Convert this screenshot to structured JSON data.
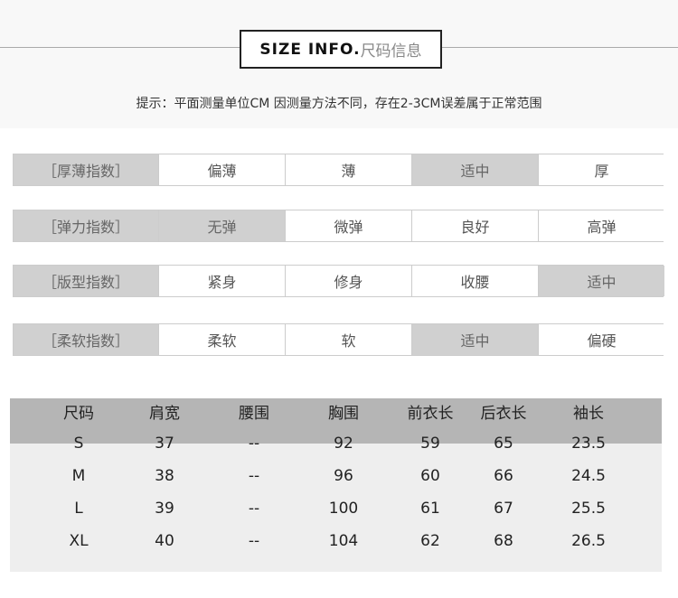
{
  "header": {
    "title_en": "SIZE INFO.",
    "title_cn": "尺码信息",
    "tip": "提示：平面测量单位CM 因测量方法不同，存在2-3CM误差属于正常范围"
  },
  "indices": [
    {
      "label": "［厚薄指数］",
      "options": [
        "偏薄",
        "薄",
        "适中",
        "厚"
      ],
      "selected": 2
    },
    {
      "label": "［弹力指数］",
      "options": [
        "无弹",
        "微弹",
        "良好",
        "高弹"
      ],
      "selected": 0
    },
    {
      "label": "［版型指数］",
      "options": [
        "紧身",
        "修身",
        "收腰",
        "适中"
      ],
      "selected": 3
    },
    {
      "label": "［柔软指数］",
      "options": [
        "柔软",
        "软",
        "适中",
        "偏硬"
      ],
      "selected": 2
    }
  ],
  "size_table": {
    "headers": [
      "尺码",
      "肩宽",
      "腰围",
      "胸围",
      "前衣长",
      "后衣长",
      "袖长"
    ],
    "rows": [
      [
        "S",
        "37",
        "--",
        "92",
        "59",
        "65",
        "23.5"
      ],
      [
        "M",
        "38",
        "--",
        "96",
        "60",
        "66",
        "24.5"
      ],
      [
        "L",
        "39",
        "--",
        "100",
        "61",
        "67",
        "25.5"
      ],
      [
        "XL",
        "40",
        "--",
        "104",
        "62",
        "68",
        "26.5"
      ]
    ]
  },
  "colors": {
    "highlight": "#d0d0d0",
    "table_header": "#b5b5b5",
    "table_body": "#eeeeee"
  }
}
